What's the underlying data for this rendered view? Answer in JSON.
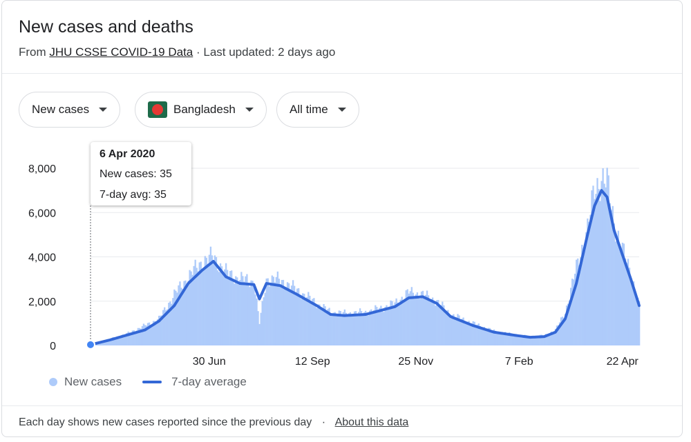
{
  "card": {
    "title": "New cases and deaths",
    "source_prefix": "From",
    "source_link": "JHU CSSE COVID-19 Data",
    "source_suffix": "· Last updated: 2 days ago"
  },
  "filters": {
    "metric": "New cases",
    "country": "Bangladesh",
    "range": "All time"
  },
  "tooltip": {
    "date": "6 Apr 2020",
    "new_cases": "New cases: 35",
    "avg": "7-day avg: 35"
  },
  "legend": {
    "bars": "New cases",
    "line": "7-day average"
  },
  "footer": {
    "note": "Each day shows new cases reported since the previous day",
    "sep": "·",
    "link": "About this data"
  },
  "colors": {
    "bar": "#aecbfa",
    "line": "#3367d6",
    "grid": "#e8eaed",
    "tooltip_dot": "#4285f4"
  },
  "chart_data": {
    "type": "bar",
    "title": "",
    "xlabel": "",
    "ylabel": "",
    "x_start": "2020-04-06",
    "x_end": "2021-05-04",
    "ylim": [
      0,
      8000
    ],
    "yticks": [
      {
        "value": 0,
        "label": "0"
      },
      {
        "value": 2000,
        "label": "2,000"
      },
      {
        "value": 4000,
        "label": "4,000"
      },
      {
        "value": 6000,
        "label": "6,000"
      },
      {
        "value": 8000,
        "label": "8,000"
      }
    ],
    "xticks": [
      {
        "date": "2020-06-30",
        "label": "30 Jun"
      },
      {
        "date": "2020-09-12",
        "label": "12 Sep"
      },
      {
        "date": "2020-11-25",
        "label": "25 Nov"
      },
      {
        "date": "2021-02-07",
        "label": "7 Feb"
      },
      {
        "date": "2021-04-22",
        "label": "22 Apr"
      }
    ],
    "grid": true,
    "highlight": {
      "date": "2020-04-06",
      "value": 35
    },
    "series": [
      {
        "name": "7-day average",
        "style": "line",
        "points": [
          [
            "2020-04-06",
            35
          ],
          [
            "2020-04-20",
            250
          ],
          [
            "2020-05-01",
            450
          ],
          [
            "2020-05-15",
            700
          ],
          [
            "2020-05-25",
            1100
          ],
          [
            "2020-06-05",
            1800
          ],
          [
            "2020-06-15",
            2800
          ],
          [
            "2020-06-25",
            3400
          ],
          [
            "2020-07-03",
            3800
          ],
          [
            "2020-07-12",
            3100
          ],
          [
            "2020-07-22",
            2800
          ],
          [
            "2020-08-01",
            2750
          ],
          [
            "2020-08-05",
            2100
          ],
          [
            "2020-08-10",
            2800
          ],
          [
            "2020-08-20",
            2700
          ],
          [
            "2020-09-01",
            2300
          ],
          [
            "2020-09-15",
            1800
          ],
          [
            "2020-09-25",
            1400
          ],
          [
            "2020-10-05",
            1350
          ],
          [
            "2020-10-20",
            1400
          ],
          [
            "2020-11-01",
            1600
          ],
          [
            "2020-11-10",
            1750
          ],
          [
            "2020-11-20",
            2150
          ],
          [
            "2020-11-30",
            2200
          ],
          [
            "2020-12-10",
            1900
          ],
          [
            "2020-12-20",
            1300
          ],
          [
            "2021-01-05",
            900
          ],
          [
            "2021-01-20",
            600
          ],
          [
            "2021-02-05",
            450
          ],
          [
            "2021-02-15",
            370
          ],
          [
            "2021-02-25",
            400
          ],
          [
            "2021-03-05",
            600
          ],
          [
            "2021-03-12",
            1200
          ],
          [
            "2021-03-20",
            2800
          ],
          [
            "2021-03-28",
            5000
          ],
          [
            "2021-04-02",
            6300
          ],
          [
            "2021-04-07",
            7000
          ],
          [
            "2021-04-11",
            6700
          ],
          [
            "2021-04-16",
            5200
          ],
          [
            "2021-04-22",
            4100
          ],
          [
            "2021-04-28",
            3000
          ],
          [
            "2021-05-04",
            1800
          ]
        ]
      },
      {
        "name": "New cases",
        "style": "bars",
        "points": [
          [
            "2020-04-06",
            35
          ],
          [
            "2020-04-20",
            300
          ],
          [
            "2020-05-01",
            500
          ],
          [
            "2020-05-15",
            900
          ],
          [
            "2020-05-25",
            1200
          ],
          [
            "2020-06-05",
            2300
          ],
          [
            "2020-06-15",
            3100
          ],
          [
            "2020-06-25",
            3800
          ],
          [
            "2020-07-03",
            4000
          ],
          [
            "2020-07-12",
            3300
          ],
          [
            "2020-07-22",
            3000
          ],
          [
            "2020-08-01",
            2900
          ],
          [
            "2020-08-05",
            1000
          ],
          [
            "2020-08-10",
            3000
          ],
          [
            "2020-08-20",
            2950
          ],
          [
            "2020-09-01",
            2500
          ],
          [
            "2020-09-15",
            1900
          ],
          [
            "2020-09-25",
            1500
          ],
          [
            "2020-10-05",
            1450
          ],
          [
            "2020-10-20",
            1500
          ],
          [
            "2020-11-01",
            1700
          ],
          [
            "2020-11-10",
            1900
          ],
          [
            "2020-11-20",
            2400
          ],
          [
            "2020-11-30",
            2300
          ],
          [
            "2020-12-10",
            2000
          ],
          [
            "2020-12-20",
            1400
          ],
          [
            "2021-01-05",
            1000
          ],
          [
            "2021-01-20",
            650
          ],
          [
            "2021-02-05",
            480
          ],
          [
            "2021-02-15",
            400
          ],
          [
            "2021-02-25",
            450
          ],
          [
            "2021-03-05",
            700
          ],
          [
            "2021-03-12",
            1500
          ],
          [
            "2021-03-20",
            3500
          ],
          [
            "2021-03-28",
            5300
          ],
          [
            "2021-04-02",
            7000
          ],
          [
            "2021-04-07",
            7600
          ],
          [
            "2021-04-11",
            7300
          ],
          [
            "2021-04-16",
            5600
          ],
          [
            "2021-04-22",
            4300
          ],
          [
            "2021-04-28",
            3300
          ],
          [
            "2021-05-04",
            1800
          ]
        ]
      }
    ]
  }
}
